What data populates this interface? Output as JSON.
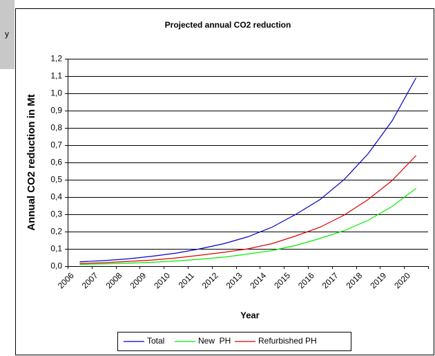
{
  "sidebar": {
    "text": "y"
  },
  "chart_data": {
    "type": "line",
    "title": "Projected annual CO2 reduction",
    "x_label": "Year",
    "y_label": "Annual CO2 reduction in Mt",
    "categories": [
      "2006",
      "2007",
      "2008",
      "2009",
      "2010",
      "2011",
      "2012",
      "2013",
      "2014",
      "2015",
      "2016",
      "2017",
      "2018",
      "2019",
      "2020"
    ],
    "series": [
      {
        "name": "Total",
        "color": "#0000cc",
        "values": [
          0.025,
          0.032,
          0.042,
          0.057,
          0.075,
          0.1,
          0.13,
          0.17,
          0.225,
          0.3,
          0.385,
          0.5,
          0.65,
          0.84,
          1.09
        ]
      },
      {
        "name": "New  PH",
        "color": "#00ee00",
        "values": [
          0.01,
          0.013,
          0.017,
          0.022,
          0.03,
          0.04,
          0.052,
          0.07,
          0.09,
          0.12,
          0.16,
          0.205,
          0.265,
          0.345,
          0.45
        ]
      },
      {
        "name": "Refurbished PH",
        "color": "#dd0000",
        "values": [
          0.015,
          0.02,
          0.027,
          0.035,
          0.047,
          0.063,
          0.08,
          0.1,
          0.13,
          0.175,
          0.225,
          0.295,
          0.385,
          0.495,
          0.64
        ]
      }
    ],
    "ylim": [
      0,
      1.2
    ],
    "yticks": [
      {
        "value": 0,
        "label": "0,0"
      },
      {
        "value": 0.1,
        "label": "0,1"
      },
      {
        "value": 0.2,
        "label": "0,2"
      },
      {
        "value": 0.3,
        "label": "0,3"
      },
      {
        "value": 0.4,
        "label": "0,4"
      },
      {
        "value": 0.5,
        "label": "0,5"
      },
      {
        "value": 0.6,
        "label": "0,6"
      },
      {
        "value": 0.7,
        "label": "0,7"
      },
      {
        "value": 0.8,
        "label": "0,8"
      },
      {
        "value": 0.9,
        "label": "0,9"
      },
      {
        "value": 1,
        "label": "1,0"
      },
      {
        "value": 1.1,
        "label": "1,1"
      },
      {
        "value": 1.2,
        "label": "1,2"
      }
    ],
    "grid": true,
    "legend": "bottom"
  }
}
